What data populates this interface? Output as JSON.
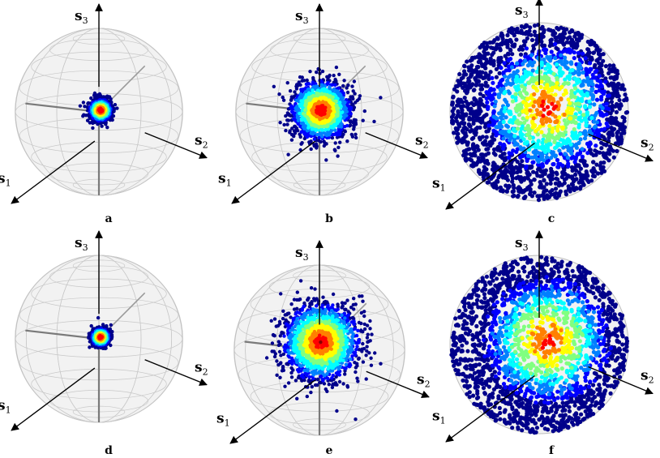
{
  "figure": {
    "axis_names": {
      "s1": "s",
      "s1_sub": "1",
      "s2": "s",
      "s2_sub": "2",
      "s3": "s",
      "s3_sub": "3"
    },
    "panels": [
      {
        "letter": "a",
        "style": "wire",
        "spread": 0.2,
        "density": "narrow cluster"
      },
      {
        "letter": "b",
        "style": "wire",
        "spread": 0.55,
        "density": "wide cluster"
      },
      {
        "letter": "c",
        "style": "full",
        "spread": 0.9,
        "density": "hemisphere"
      },
      {
        "letter": "d",
        "style": "wire",
        "spread": 0.16,
        "density": "narrow cluster"
      },
      {
        "letter": "e",
        "style": "wire",
        "spread": 0.7,
        "density": "wide cluster"
      },
      {
        "letter": "f",
        "style": "full",
        "spread": 0.95,
        "density": "hemisphere"
      }
    ],
    "colormap": [
      "#00008b",
      "#0000ff",
      "#0080ff",
      "#00ffff",
      "#80ff80",
      "#ffff00",
      "#ff8000",
      "#ff0000",
      "#8b0000"
    ]
  }
}
